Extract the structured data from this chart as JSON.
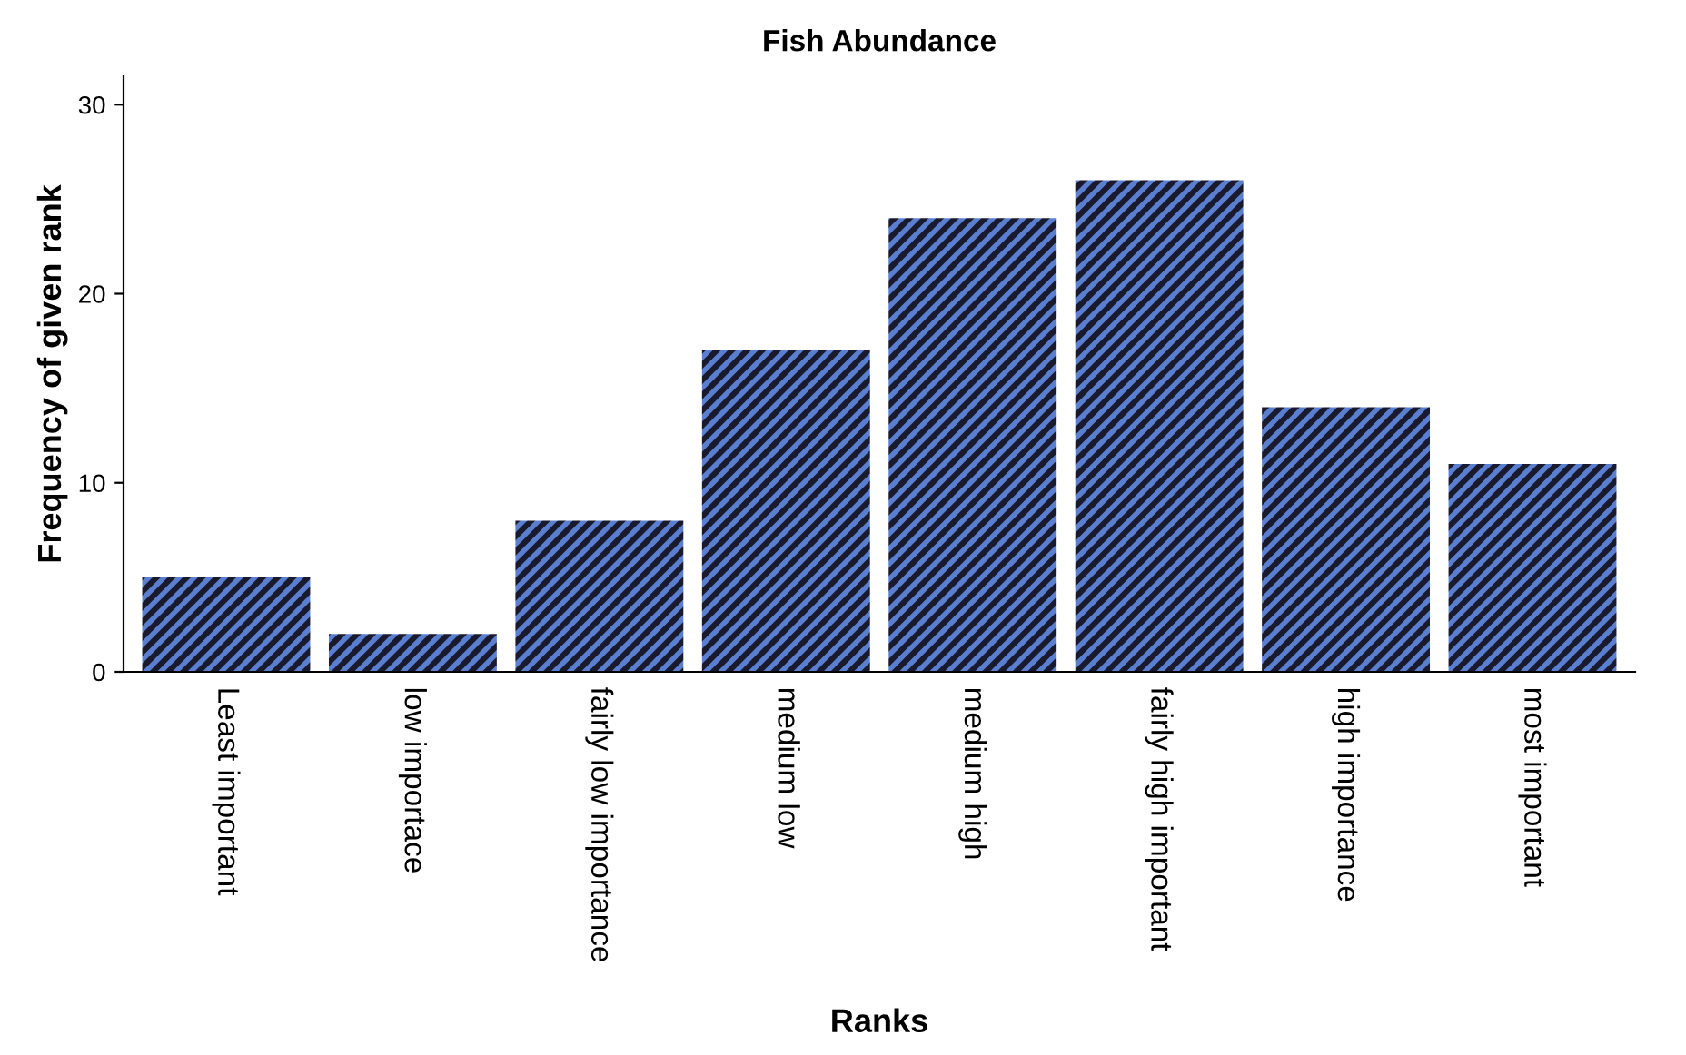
{
  "chart_data": {
    "type": "bar",
    "title": "Fish Abundance",
    "xlabel": "Ranks",
    "ylabel": "Frequency of given rank",
    "categories": [
      "Least important",
      "low importace",
      "fairly low importance",
      "medium low",
      "medium high",
      "fairly high important",
      "high importance",
      "most important"
    ],
    "values": [
      5,
      2,
      8,
      17,
      24,
      26,
      14,
      11
    ],
    "color": "#5b7fd0",
    "ylim": [
      0,
      31.5
    ],
    "yticks": [
      0,
      10,
      20,
      30
    ],
    "grid": false
  }
}
